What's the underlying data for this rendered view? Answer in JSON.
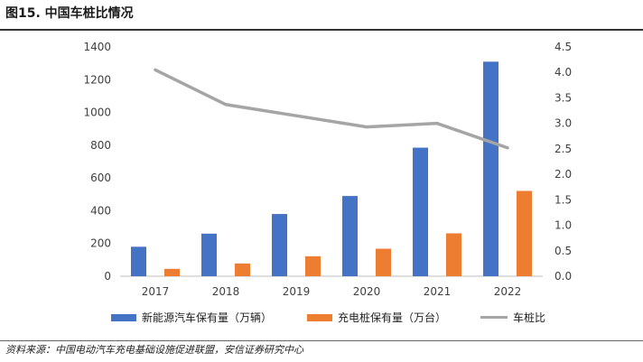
{
  "figure": {
    "title": "图15. 中国车桩比情况",
    "source": "资料来源：中国电动汽车充电基础设施促进联盟，安信证券研究中心"
  },
  "colors": {
    "ev_bar": "#4472C4",
    "pile_bar": "#ED7D31",
    "ratio_line": "#A5A5A5"
  },
  "chart_data": {
    "type": "bar",
    "title": "",
    "categories": [
      "2017",
      "2018",
      "2019",
      "2020",
      "2021",
      "2022"
    ],
    "series": [
      {
        "name": "新能源汽车保有量（万辆）",
        "kind": "bar",
        "axis": "left",
        "values": [
          180,
          260,
          380,
          490,
          785,
          1310
        ]
      },
      {
        "name": "充电桩保有量（万台）",
        "kind": "bar",
        "axis": "left",
        "values": [
          45,
          78,
          122,
          168,
          262,
          521
        ]
      },
      {
        "name": "车桩比",
        "kind": "line",
        "axis": "right",
        "values": [
          4.05,
          3.37,
          3.15,
          2.93,
          3.0,
          2.52
        ]
      }
    ],
    "left_axis": {
      "ylim": [
        0,
        1400
      ],
      "ticks": [
        "0",
        "200",
        "400",
        "600",
        "800",
        "1000",
        "1200",
        "1400"
      ]
    },
    "right_axis": {
      "ylim": [
        0,
        4.5
      ],
      "ticks": [
        "0.0",
        "0.5",
        "1.0",
        "1.5",
        "2.0",
        "2.5",
        "3.0",
        "3.5",
        "4.0",
        "4.5"
      ]
    },
    "legend": "bottom",
    "grid": false
  }
}
